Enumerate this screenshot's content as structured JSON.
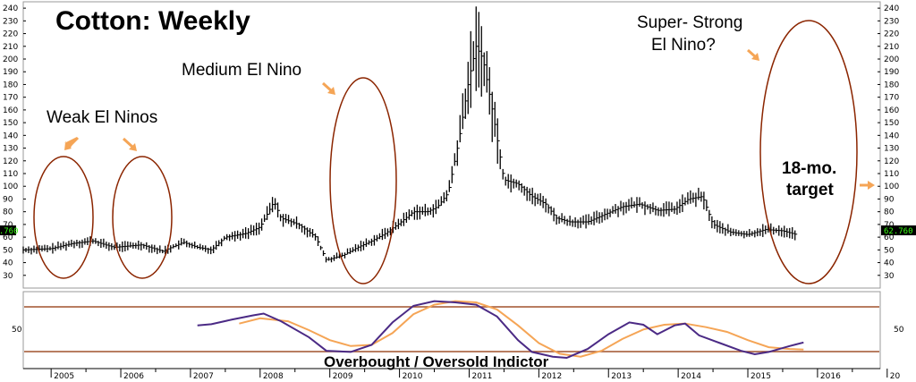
{
  "chart_data": {
    "type": "bar",
    "title": "Cotton: Weekly",
    "price_axis": {
      "min": 20,
      "max": 245,
      "step": 10
    },
    "osc_axis": {
      "label_value": "50"
    },
    "current_price": "62.760",
    "years": [
      "2005",
      "2006",
      "2007",
      "2008",
      "2009",
      "2010",
      "2011",
      "2012",
      "2013",
      "2014",
      "2015",
      "2016",
      "20"
    ],
    "x_range": [
      2004.6,
      2016.9
    ],
    "price_path": [
      [
        2004.6,
        50
      ],
      [
        2005.0,
        51
      ],
      [
        2005.3,
        55
      ],
      [
        2005.6,
        57
      ],
      [
        2005.9,
        52
      ],
      [
        2006.3,
        54
      ],
      [
        2006.6,
        49
      ],
      [
        2006.9,
        56
      ],
      [
        2007.1,
        52
      ],
      [
        2007.3,
        50
      ],
      [
        2007.5,
        60
      ],
      [
        2007.8,
        63
      ],
      [
        2008.0,
        68
      ],
      [
        2008.2,
        88
      ],
      [
        2008.3,
        75
      ],
      [
        2008.55,
        70
      ],
      [
        2008.8,
        60
      ],
      [
        2008.95,
        42
      ],
      [
        2009.2,
        46
      ],
      [
        2009.4,
        52
      ],
      [
        2009.6,
        57
      ],
      [
        2009.8,
        63
      ],
      [
        2010.0,
        71
      ],
      [
        2010.2,
        80
      ],
      [
        2010.4,
        80
      ],
      [
        2010.55,
        84
      ],
      [
        2010.7,
        95
      ],
      [
        2010.85,
        135
      ],
      [
        2011.0,
        185
      ],
      [
        2011.1,
        210
      ],
      [
        2011.2,
        200
      ],
      [
        2011.35,
        155
      ],
      [
        2011.5,
        105
      ],
      [
        2011.7,
        102
      ],
      [
        2011.9,
        92
      ],
      [
        2012.1,
        86
      ],
      [
        2012.25,
        75
      ],
      [
        2012.45,
        72
      ],
      [
        2012.7,
        72
      ],
      [
        2012.95,
        78
      ],
      [
        2013.2,
        84
      ],
      [
        2013.45,
        86
      ],
      [
        2013.7,
        81
      ],
      [
        2013.95,
        82
      ],
      [
        2014.15,
        90
      ],
      [
        2014.35,
        92
      ],
      [
        2014.5,
        70
      ],
      [
        2014.75,
        64
      ],
      [
        2015.0,
        62
      ],
      [
        2015.25,
        66
      ],
      [
        2015.5,
        65
      ],
      [
        2015.7,
        62
      ]
    ],
    "oscillator": {
      "fast": [
        [
          2007.1,
          55
        ],
        [
          2007.3,
          57
        ],
        [
          2007.6,
          65
        ],
        [
          2007.9,
          72
        ],
        [
          2008.05,
          75
        ],
        [
          2008.3,
          62
        ],
        [
          2008.7,
          35
        ],
        [
          2008.95,
          12
        ],
        [
          2009.3,
          10
        ],
        [
          2009.6,
          22
        ],
        [
          2009.9,
          60
        ],
        [
          2010.2,
          88
        ],
        [
          2010.5,
          96
        ],
        [
          2010.8,
          94
        ],
        [
          2011.1,
          90
        ],
        [
          2011.4,
          70
        ],
        [
          2011.7,
          30
        ],
        [
          2011.9,
          10
        ],
        [
          2012.2,
          2
        ],
        [
          2012.4,
          0
        ],
        [
          2012.7,
          15
        ],
        [
          2013.0,
          40
        ],
        [
          2013.3,
          60
        ],
        [
          2013.5,
          56
        ],
        [
          2013.7,
          40
        ],
        [
          2013.95,
          55
        ],
        [
          2014.1,
          58
        ],
        [
          2014.3,
          38
        ],
        [
          2014.6,
          25
        ],
        [
          2014.9,
          12
        ],
        [
          2015.1,
          6
        ],
        [
          2015.3,
          10
        ],
        [
          2015.6,
          20
        ],
        [
          2015.8,
          26
        ]
      ],
      "slow": [
        [
          2007.7,
          58
        ],
        [
          2008.0,
          67
        ],
        [
          2008.4,
          62
        ],
        [
          2008.7,
          47
        ],
        [
          2009.0,
          30
        ],
        [
          2009.3,
          20
        ],
        [
          2009.6,
          22
        ],
        [
          2009.9,
          42
        ],
        [
          2010.2,
          74
        ],
        [
          2010.5,
          90
        ],
        [
          2010.8,
          96
        ],
        [
          2011.1,
          94
        ],
        [
          2011.4,
          82
        ],
        [
          2011.7,
          55
        ],
        [
          2012.0,
          25
        ],
        [
          2012.3,
          7
        ],
        [
          2012.6,
          2
        ],
        [
          2012.9,
          12
        ],
        [
          2013.2,
          32
        ],
        [
          2013.5,
          48
        ],
        [
          2013.8,
          56
        ],
        [
          2014.1,
          58
        ],
        [
          2014.4,
          52
        ],
        [
          2014.7,
          44
        ],
        [
          2015.0,
          30
        ],
        [
          2015.3,
          18
        ],
        [
          2015.6,
          15
        ],
        [
          2015.8,
          14
        ]
      ]
    },
    "overbought_level": "upper",
    "oversold_level": "lower",
    "osc_label": "Overbought / Oversold Indictor",
    "annotations": {
      "weak": "Weak El Ninos",
      "medium": "Medium El Nino",
      "strong_1": "Super- Strong",
      "strong_2": "El Nino?",
      "target_1": "18-mo.",
      "target_2": "target"
    }
  }
}
